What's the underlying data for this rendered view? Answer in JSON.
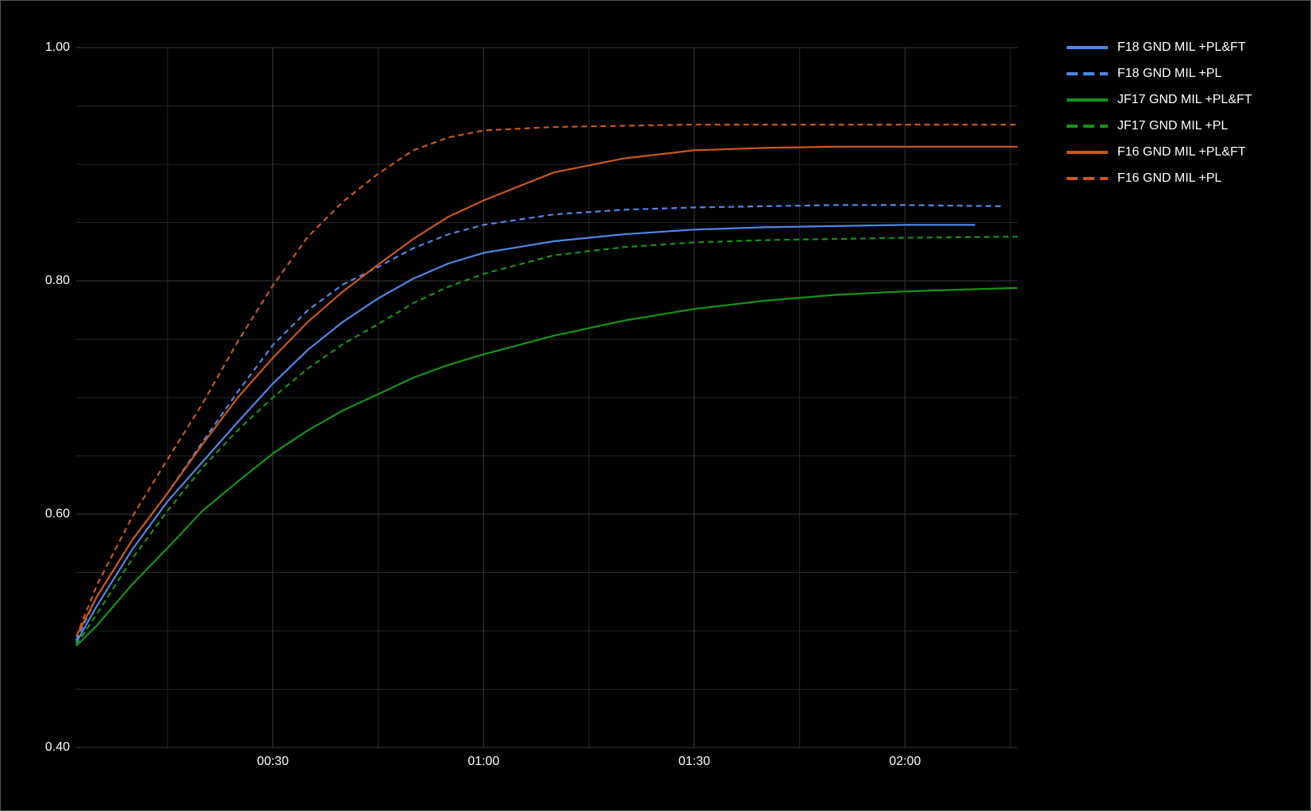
{
  "chart_data": {
    "type": "line",
    "xlim": [
      2,
      136
    ],
    "xticks": [
      {
        "value": 30,
        "label": "00:30"
      },
      {
        "value": 60,
        "label": "01:00"
      },
      {
        "value": 90,
        "label": "01:30"
      },
      {
        "value": 120,
        "label": "02:00"
      }
    ],
    "minor_xticks": [
      15,
      45,
      75,
      105,
      135
    ],
    "ylim": [
      0.4,
      1.0
    ],
    "yticks": [
      {
        "value": 0.4,
        "label": "0.40"
      },
      {
        "value": 0.6,
        "label": "0.60"
      },
      {
        "value": 0.8,
        "label": "0.80"
      },
      {
        "value": 1.0,
        "label": "1.00"
      }
    ],
    "minor_yticks": [
      0.45,
      0.5,
      0.55,
      0.65,
      0.7,
      0.75,
      0.85,
      0.9,
      0.95
    ],
    "grid": true,
    "legend": "right",
    "series": [
      {
        "name": "F18 GND MIL +PL&FT",
        "color": "#4f87e6",
        "dashed": false,
        "x": [
          2,
          5,
          10,
          15,
          20,
          25,
          30,
          35,
          40,
          45,
          50,
          55,
          60,
          70,
          80,
          90,
          100,
          110,
          120,
          130
        ],
        "values": [
          0.49,
          0.522,
          0.57,
          0.611,
          0.645,
          0.679,
          0.712,
          0.741,
          0.765,
          0.785,
          0.802,
          0.815,
          0.824,
          0.834,
          0.84,
          0.844,
          0.846,
          0.847,
          0.848,
          0.848
        ]
      },
      {
        "name": "F18 GND MIL +PL",
        "color": "#4f87e6",
        "dashed": true,
        "x": [
          2,
          5,
          10,
          15,
          20,
          25,
          30,
          35,
          40,
          45,
          50,
          55,
          60,
          70,
          80,
          90,
          100,
          110,
          120,
          134
        ],
        "values": [
          0.492,
          0.53,
          0.578,
          0.618,
          0.662,
          0.705,
          0.745,
          0.775,
          0.797,
          0.812,
          0.828,
          0.84,
          0.848,
          0.857,
          0.861,
          0.863,
          0.864,
          0.865,
          0.865,
          0.864
        ]
      },
      {
        "name": "JF17 GND MIL +PL&FT",
        "color": "#159415",
        "dashed": false,
        "x": [
          2,
          5,
          10,
          15,
          20,
          25,
          30,
          35,
          40,
          45,
          50,
          55,
          60,
          70,
          80,
          90,
          100,
          110,
          120,
          136
        ],
        "values": [
          0.487,
          0.505,
          0.54,
          0.571,
          0.603,
          0.628,
          0.652,
          0.672,
          0.689,
          0.703,
          0.717,
          0.728,
          0.737,
          0.753,
          0.766,
          0.776,
          0.783,
          0.788,
          0.791,
          0.794
        ]
      },
      {
        "name": "JF17 GND MIL +PL",
        "color": "#159415",
        "dashed": true,
        "x": [
          2,
          5,
          10,
          15,
          20,
          25,
          30,
          35,
          40,
          45,
          50,
          55,
          60,
          70,
          80,
          90,
          100,
          110,
          120,
          136
        ],
        "values": [
          0.488,
          0.515,
          0.562,
          0.603,
          0.64,
          0.672,
          0.7,
          0.725,
          0.746,
          0.763,
          0.781,
          0.795,
          0.806,
          0.822,
          0.829,
          0.833,
          0.835,
          0.836,
          0.837,
          0.838
        ]
      },
      {
        "name": "F16 GND MIL +PL&FT",
        "color": "#c9581a",
        "dashed": false,
        "x": [
          2,
          5,
          10,
          15,
          20,
          25,
          30,
          35,
          40,
          45,
          50,
          55,
          60,
          70,
          80,
          90,
          100,
          110,
          120,
          136
        ],
        "values": [
          0.495,
          0.53,
          0.578,
          0.618,
          0.66,
          0.7,
          0.734,
          0.765,
          0.791,
          0.814,
          0.836,
          0.855,
          0.869,
          0.893,
          0.905,
          0.912,
          0.914,
          0.915,
          0.915,
          0.915
        ]
      },
      {
        "name": "F16 GND MIL +PL",
        "color": "#c9581a",
        "dashed": true,
        "x": [
          2,
          5,
          10,
          15,
          20,
          25,
          30,
          35,
          40,
          45,
          50,
          55,
          60,
          70,
          80,
          90,
          100,
          110,
          120,
          136
        ],
        "values": [
          0.495,
          0.54,
          0.598,
          0.647,
          0.695,
          0.748,
          0.796,
          0.838,
          0.868,
          0.892,
          0.912,
          0.923,
          0.929,
          0.932,
          0.933,
          0.934,
          0.934,
          0.934,
          0.934,
          0.934
        ]
      }
    ]
  }
}
